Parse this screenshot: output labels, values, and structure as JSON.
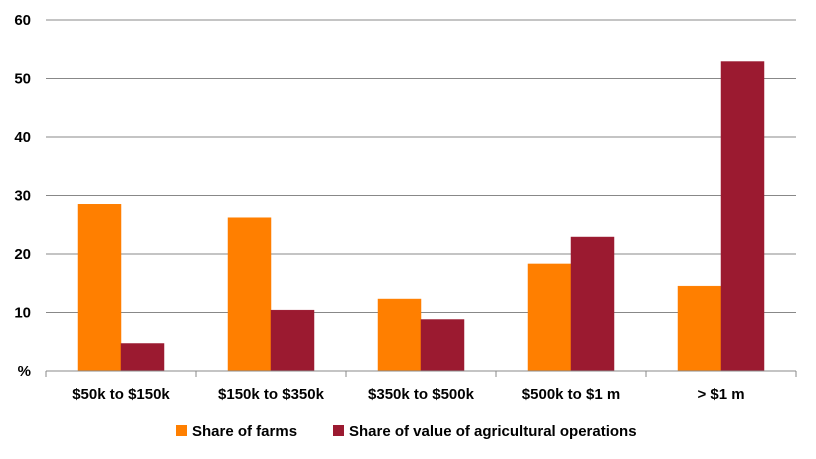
{
  "chart_data": {
    "type": "bar",
    "categories": [
      "$50k to $150k",
      "$150k to $350k",
      "$350k to $500k",
      "$500k to $1 m",
      "> $1 m"
    ],
    "series": [
      {
        "name": "Share of farms",
        "color": "#ff7f00",
        "values": [
          28.5,
          26.2,
          12.3,
          18.3,
          14.5
        ]
      },
      {
        "name": "Share of value of agricultural operations",
        "color": "#9b1a30",
        "values": [
          4.7,
          10.4,
          8.8,
          22.9,
          52.9
        ]
      }
    ],
    "ylabel": "%",
    "yticks": [
      "%",
      "10",
      "20",
      "30",
      "40",
      "50",
      "60"
    ],
    "ylim": [
      0,
      60
    ],
    "grid": true,
    "legend_position": "bottom-center"
  }
}
